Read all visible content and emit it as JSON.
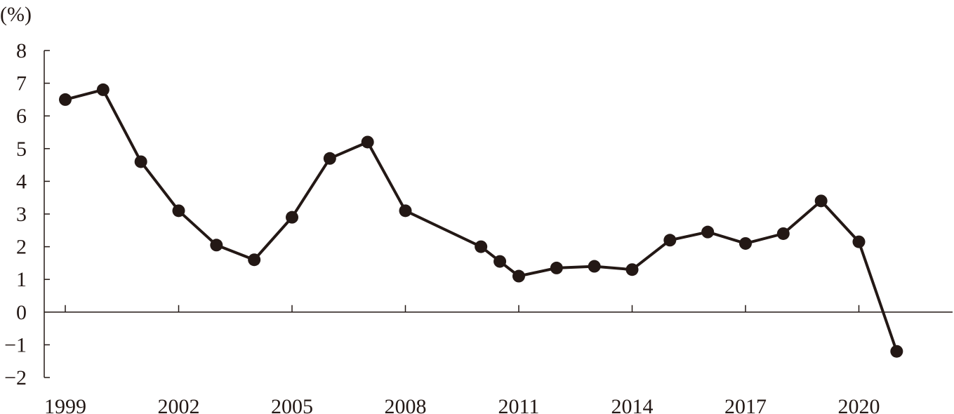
{
  "chart_data": {
    "type": "line",
    "unit_label": "(%)",
    "ylim": [
      -2,
      8
    ],
    "yticks": [
      8,
      7,
      6,
      5,
      4,
      3,
      2,
      1,
      0,
      -1,
      -2
    ],
    "ytick_labels": [
      "8",
      "7",
      "6",
      "5",
      "4",
      "3",
      "2",
      "1",
      "0",
      "−1",
      "−2"
    ],
    "xlim": [
      1998.6,
      2022.8
    ],
    "xticks": [
      1999,
      2002,
      2005,
      2008,
      2011,
      2014,
      2017,
      2020
    ],
    "xtick_labels": [
      "1999",
      "2002",
      "2005",
      "2008",
      "2011",
      "2014",
      "2017",
      "2020"
    ],
    "grid": false,
    "series": [
      {
        "color": "#231815",
        "points": [
          {
            "x": 1999.0,
            "y": 6.5
          },
          {
            "x": 2000.0,
            "y": 6.8
          },
          {
            "x": 2001.0,
            "y": 4.6
          },
          {
            "x": 2002.0,
            "y": 3.1
          },
          {
            "x": 2003.0,
            "y": 2.05
          },
          {
            "x": 2004.0,
            "y": 1.6
          },
          {
            "x": 2005.0,
            "y": 2.9
          },
          {
            "x": 2006.0,
            "y": 4.7
          },
          {
            "x": 2007.0,
            "y": 5.2
          },
          {
            "x": 2008.0,
            "y": 3.1
          },
          {
            "x": 2010.0,
            "y": 2.0
          },
          {
            "x": 2010.5,
            "y": 1.55
          },
          {
            "x": 2011.0,
            "y": 1.1
          },
          {
            "x": 2012.0,
            "y": 1.35
          },
          {
            "x": 2013.0,
            "y": 1.4
          },
          {
            "x": 2014.0,
            "y": 1.3
          },
          {
            "x": 2015.0,
            "y": 2.2
          },
          {
            "x": 2016.0,
            "y": 2.45
          },
          {
            "x": 2017.0,
            "y": 2.1
          },
          {
            "x": 2018.0,
            "y": 2.4
          },
          {
            "x": 2019.0,
            "y": 3.4
          },
          {
            "x": 2020.0,
            "y": 2.15
          },
          {
            "x": 2021.0,
            "y": -1.2
          }
        ]
      }
    ]
  }
}
